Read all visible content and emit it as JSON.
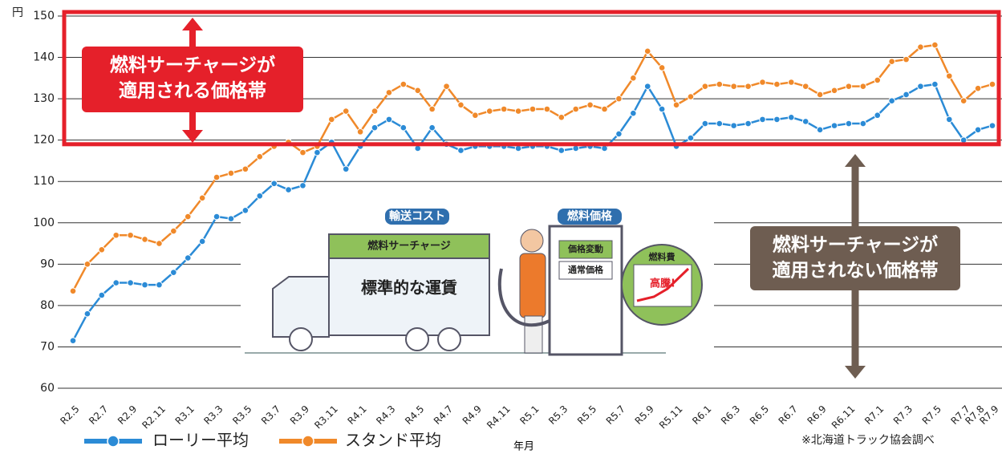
{
  "chart_data": {
    "type": "line",
    "y_unit": "円",
    "x_label": "年月",
    "source": "※北海道トラック協会調べ",
    "categories": [
      "R2.5",
      null,
      "R2.7",
      null,
      "R2.9",
      null,
      "R2.11",
      null,
      "R3.1",
      null,
      "R3.3",
      null,
      "R3.5",
      null,
      "R3.7",
      null,
      "R3.9",
      null,
      "R3.11",
      null,
      "R4.1",
      null,
      "R4.3",
      null,
      "R4.5",
      null,
      "R4.7",
      null,
      "R4.9",
      null,
      "R4.11",
      null,
      "R5.1",
      null,
      "R5.3",
      null,
      "R5.5",
      null,
      "R5.7",
      null,
      "R5.9",
      null,
      "R5.11",
      null,
      "R6.1",
      null,
      "R6.3",
      null,
      "R6.5",
      null,
      "R6.7",
      null,
      "R6.9",
      null,
      "R6.11",
      null,
      "R7.1",
      null,
      "R7.3",
      null,
      "R7.5",
      null,
      "R7.7",
      "R7.8",
      "R7.9"
    ],
    "series": [
      {
        "name": "ローリー平均",
        "color": "#2b8bd6",
        "values": [
          71.5,
          78,
          82.5,
          85.5,
          85.5,
          85,
          85,
          88,
          91.5,
          95.5,
          101.5,
          101,
          103,
          106.5,
          109.5,
          108,
          109,
          117,
          119.5,
          113,
          118.5,
          123,
          125,
          123,
          118,
          123,
          119,
          117.5,
          118.5,
          118.5,
          118.5,
          118,
          118.5,
          118.5,
          117.5,
          118,
          118.5,
          118,
          121.5,
          126.5,
          133,
          127.5,
          118.5,
          120.5,
          124,
          124,
          123.5,
          124,
          125,
          125,
          125.5,
          124.5,
          122.5,
          123.5,
          124,
          124,
          126,
          129.5,
          131,
          133,
          133.5,
          125,
          120,
          122.5,
          123.5
        ]
      },
      {
        "name": "スタンド平均",
        "color": "#f0892a",
        "values": [
          83.5,
          90,
          93.5,
          97,
          97,
          96,
          95,
          98,
          101.5,
          106,
          111,
          112,
          113,
          116,
          118.5,
          119.5,
          117,
          118.5,
          125,
          127,
          122,
          127,
          131.5,
          133.5,
          132,
          127.5,
          133,
          128.5,
          126,
          127,
          127.5,
          127,
          127.5,
          127.5,
          125.5,
          127.5,
          128.5,
          127.5,
          130,
          135,
          141.5,
          137.5,
          128.5,
          130.5,
          133,
          133.5,
          133,
          133,
          134,
          133.5,
          134,
          133,
          131,
          132,
          133,
          133,
          134.5,
          139,
          139.5,
          142.5,
          143,
          135.5,
          129.5,
          132.5,
          133.5
        ]
      }
    ],
    "ylim": [
      60,
      150
    ],
    "yticks": [
      60,
      70,
      80,
      90,
      100,
      110,
      120,
      130,
      140,
      150
    ],
    "grid": true,
    "highlight_range": [
      119,
      150
    ],
    "highlight_color": "#e5202a",
    "annotations": [
      {
        "lines": [
          "燃料サーチャージが",
          "適用される価格帯"
        ],
        "color": "#e5202a"
      },
      {
        "lines": [
          "燃料サーチャージが",
          "適用されない価格帯"
        ],
        "color": "#6e5d51"
      }
    ],
    "illustration_labels": [
      "輸送コスト",
      "燃料価格",
      "燃料サーチャージ",
      "標準的な運賃",
      "価格変動",
      "通常価格",
      "燃料費",
      "高騰!"
    ]
  }
}
